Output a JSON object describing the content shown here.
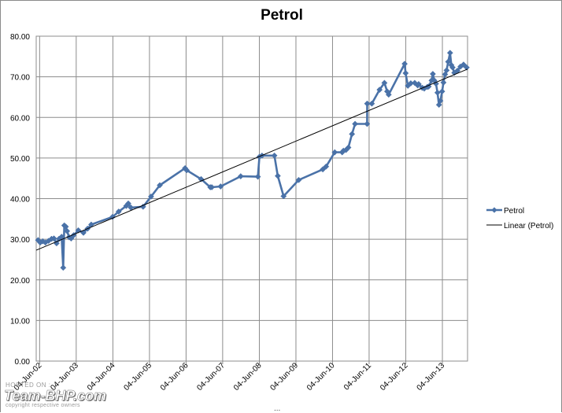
{
  "chart_data": {
    "type": "line",
    "title": "Petrol",
    "ylim": [
      0,
      80
    ],
    "y_ticks": [
      "0.00",
      "10.00",
      "20.00",
      "30.00",
      "40.00",
      "50.00",
      "60.00",
      "70.00",
      "80.00"
    ],
    "y_tick_values": [
      0,
      10,
      20,
      30,
      40,
      50,
      60,
      70,
      80
    ],
    "x_range": [
      "2002-05-01",
      "2014-02-10"
    ],
    "x_tick_labels": [
      "04-Jun-02",
      "04-Jun-03",
      "04-Jun-04",
      "04-Jun-05",
      "04-Jun-06",
      "04-Jun-07",
      "04-Jun-08",
      "04-Jun-09",
      "04-Jun-10",
      "04-Jun-11",
      "04-Jun-12",
      "04-Jun-13"
    ],
    "x_tick_dates": [
      "2002-06-04",
      "2003-06-04",
      "2004-06-04",
      "2005-06-04",
      "2006-06-04",
      "2007-06-04",
      "2008-06-04",
      "2009-06-04",
      "2010-06-04",
      "2011-06-04",
      "2012-06-04",
      "2013-06-04"
    ],
    "grid": true,
    "legend_position": "right",
    "series": [
      {
        "name": "Petrol",
        "color": "#4a72a8",
        "marker": "diamond",
        "points": [
          [
            "2002-05-20",
            29.8
          ],
          [
            "2002-06-10",
            29.2
          ],
          [
            "2002-07-05",
            29.5
          ],
          [
            "2002-08-01",
            29.2
          ],
          [
            "2002-09-01",
            29.6
          ],
          [
            "2002-10-01",
            30.1
          ],
          [
            "2002-10-25",
            30.2
          ],
          [
            "2002-11-20",
            29.0
          ],
          [
            "2002-12-15",
            30.1
          ],
          [
            "2003-01-10",
            30.6
          ],
          [
            "2003-01-25",
            23.0
          ],
          [
            "2003-02-05",
            33.4
          ],
          [
            "2003-02-20",
            33.1
          ],
          [
            "2003-03-05",
            32.0
          ],
          [
            "2003-03-25",
            30.5
          ],
          [
            "2003-04-15",
            30.2
          ],
          [
            "2003-05-10",
            31.0
          ],
          [
            "2003-06-25",
            32.2
          ],
          [
            "2003-08-15",
            31.6
          ],
          [
            "2003-09-25",
            32.6
          ],
          [
            "2003-11-01",
            33.6
          ],
          [
            "2004-06-01",
            35.5
          ],
          [
            "2004-08-01",
            36.8
          ],
          [
            "2004-10-15",
            38.2
          ],
          [
            "2004-11-05",
            38.8
          ],
          [
            "2004-12-01",
            37.8
          ],
          [
            "2005-04-01",
            38.0
          ],
          [
            "2005-06-20",
            40.5
          ],
          [
            "2005-09-15",
            43.3
          ],
          [
            "2006-05-25",
            47.5
          ],
          [
            "2006-06-10",
            47.0
          ],
          [
            "2006-11-01",
            44.8
          ],
          [
            "2007-02-01",
            42.8
          ],
          [
            "2007-02-16",
            42.8
          ],
          [
            "2007-05-15",
            43.0
          ],
          [
            "2007-12-01",
            45.5
          ],
          [
            "2008-05-20",
            45.4
          ],
          [
            "2008-06-05",
            50.3
          ],
          [
            "2008-07-01",
            50.6
          ],
          [
            "2008-11-01",
            50.6
          ],
          [
            "2008-12-05",
            45.6
          ],
          [
            "2009-02-01",
            40.6
          ],
          [
            "2009-07-02",
            44.6
          ],
          [
            "2010-02-27",
            47.2
          ],
          [
            "2010-04-01",
            47.9
          ],
          [
            "2010-06-26",
            51.4
          ],
          [
            "2010-09-08",
            51.4
          ],
          [
            "2010-09-21",
            51.8
          ],
          [
            "2010-10-17",
            52.0
          ],
          [
            "2010-11-09",
            52.6
          ],
          [
            "2010-12-15",
            55.9
          ],
          [
            "2011-01-15",
            58.4
          ],
          [
            "2011-05-15",
            58.4
          ],
          [
            "2011-05-16",
            63.4
          ],
          [
            "2011-07-01",
            63.4
          ],
          [
            "2011-09-16",
            66.8
          ],
          [
            "2011-11-04",
            68.5
          ],
          [
            "2011-12-01",
            66.4
          ],
          [
            "2011-12-16",
            65.6
          ],
          [
            "2012-05-24",
            73.2
          ],
          [
            "2012-06-02",
            70.9
          ],
          [
            "2012-06-25",
            67.8
          ],
          [
            "2012-07-24",
            68.4
          ],
          [
            "2012-09-01",
            68.5
          ],
          [
            "2012-10-01",
            67.9
          ],
          [
            "2012-10-10",
            68.2
          ],
          [
            "2012-11-15",
            67.3
          ],
          [
            "2012-12-05",
            67.1
          ],
          [
            "2013-01-05",
            67.5
          ],
          [
            "2013-01-18",
            67.6
          ],
          [
            "2013-02-16",
            69.1
          ],
          [
            "2013-03-01",
            70.7
          ],
          [
            "2013-03-16",
            69.1
          ],
          [
            "2013-04-01",
            68.3
          ],
          [
            "2013-04-16",
            66.1
          ],
          [
            "2013-05-01",
            63.1
          ],
          [
            "2013-05-15",
            64.1
          ],
          [
            "2013-06-01",
            66.4
          ],
          [
            "2013-06-15",
            68.6
          ],
          [
            "2013-07-01",
            70.6
          ],
          [
            "2013-07-16",
            71.6
          ],
          [
            "2013-08-01",
            73.7
          ],
          [
            "2013-08-20",
            75.9
          ],
          [
            "2013-09-01",
            72.9
          ],
          [
            "2013-09-14",
            72.3
          ],
          [
            "2013-10-01",
            71.0
          ],
          [
            "2013-11-01",
            71.5
          ],
          [
            "2013-12-01",
            72.5
          ],
          [
            "2014-01-01",
            73.0
          ],
          [
            "2014-02-01",
            72.3
          ]
        ]
      },
      {
        "name": "Linear (Petrol)",
        "color": "#000000",
        "marker": "none",
        "points": [
          [
            "2002-05-01",
            27.3
          ],
          [
            "2014-02-10",
            71.9
          ]
        ]
      }
    ]
  },
  "watermark": {
    "hosted": "HOSTED ON :",
    "brand": "Team-BHP.com",
    "copyright": "copyright respective owners"
  },
  "scroll_indicator": "..."
}
